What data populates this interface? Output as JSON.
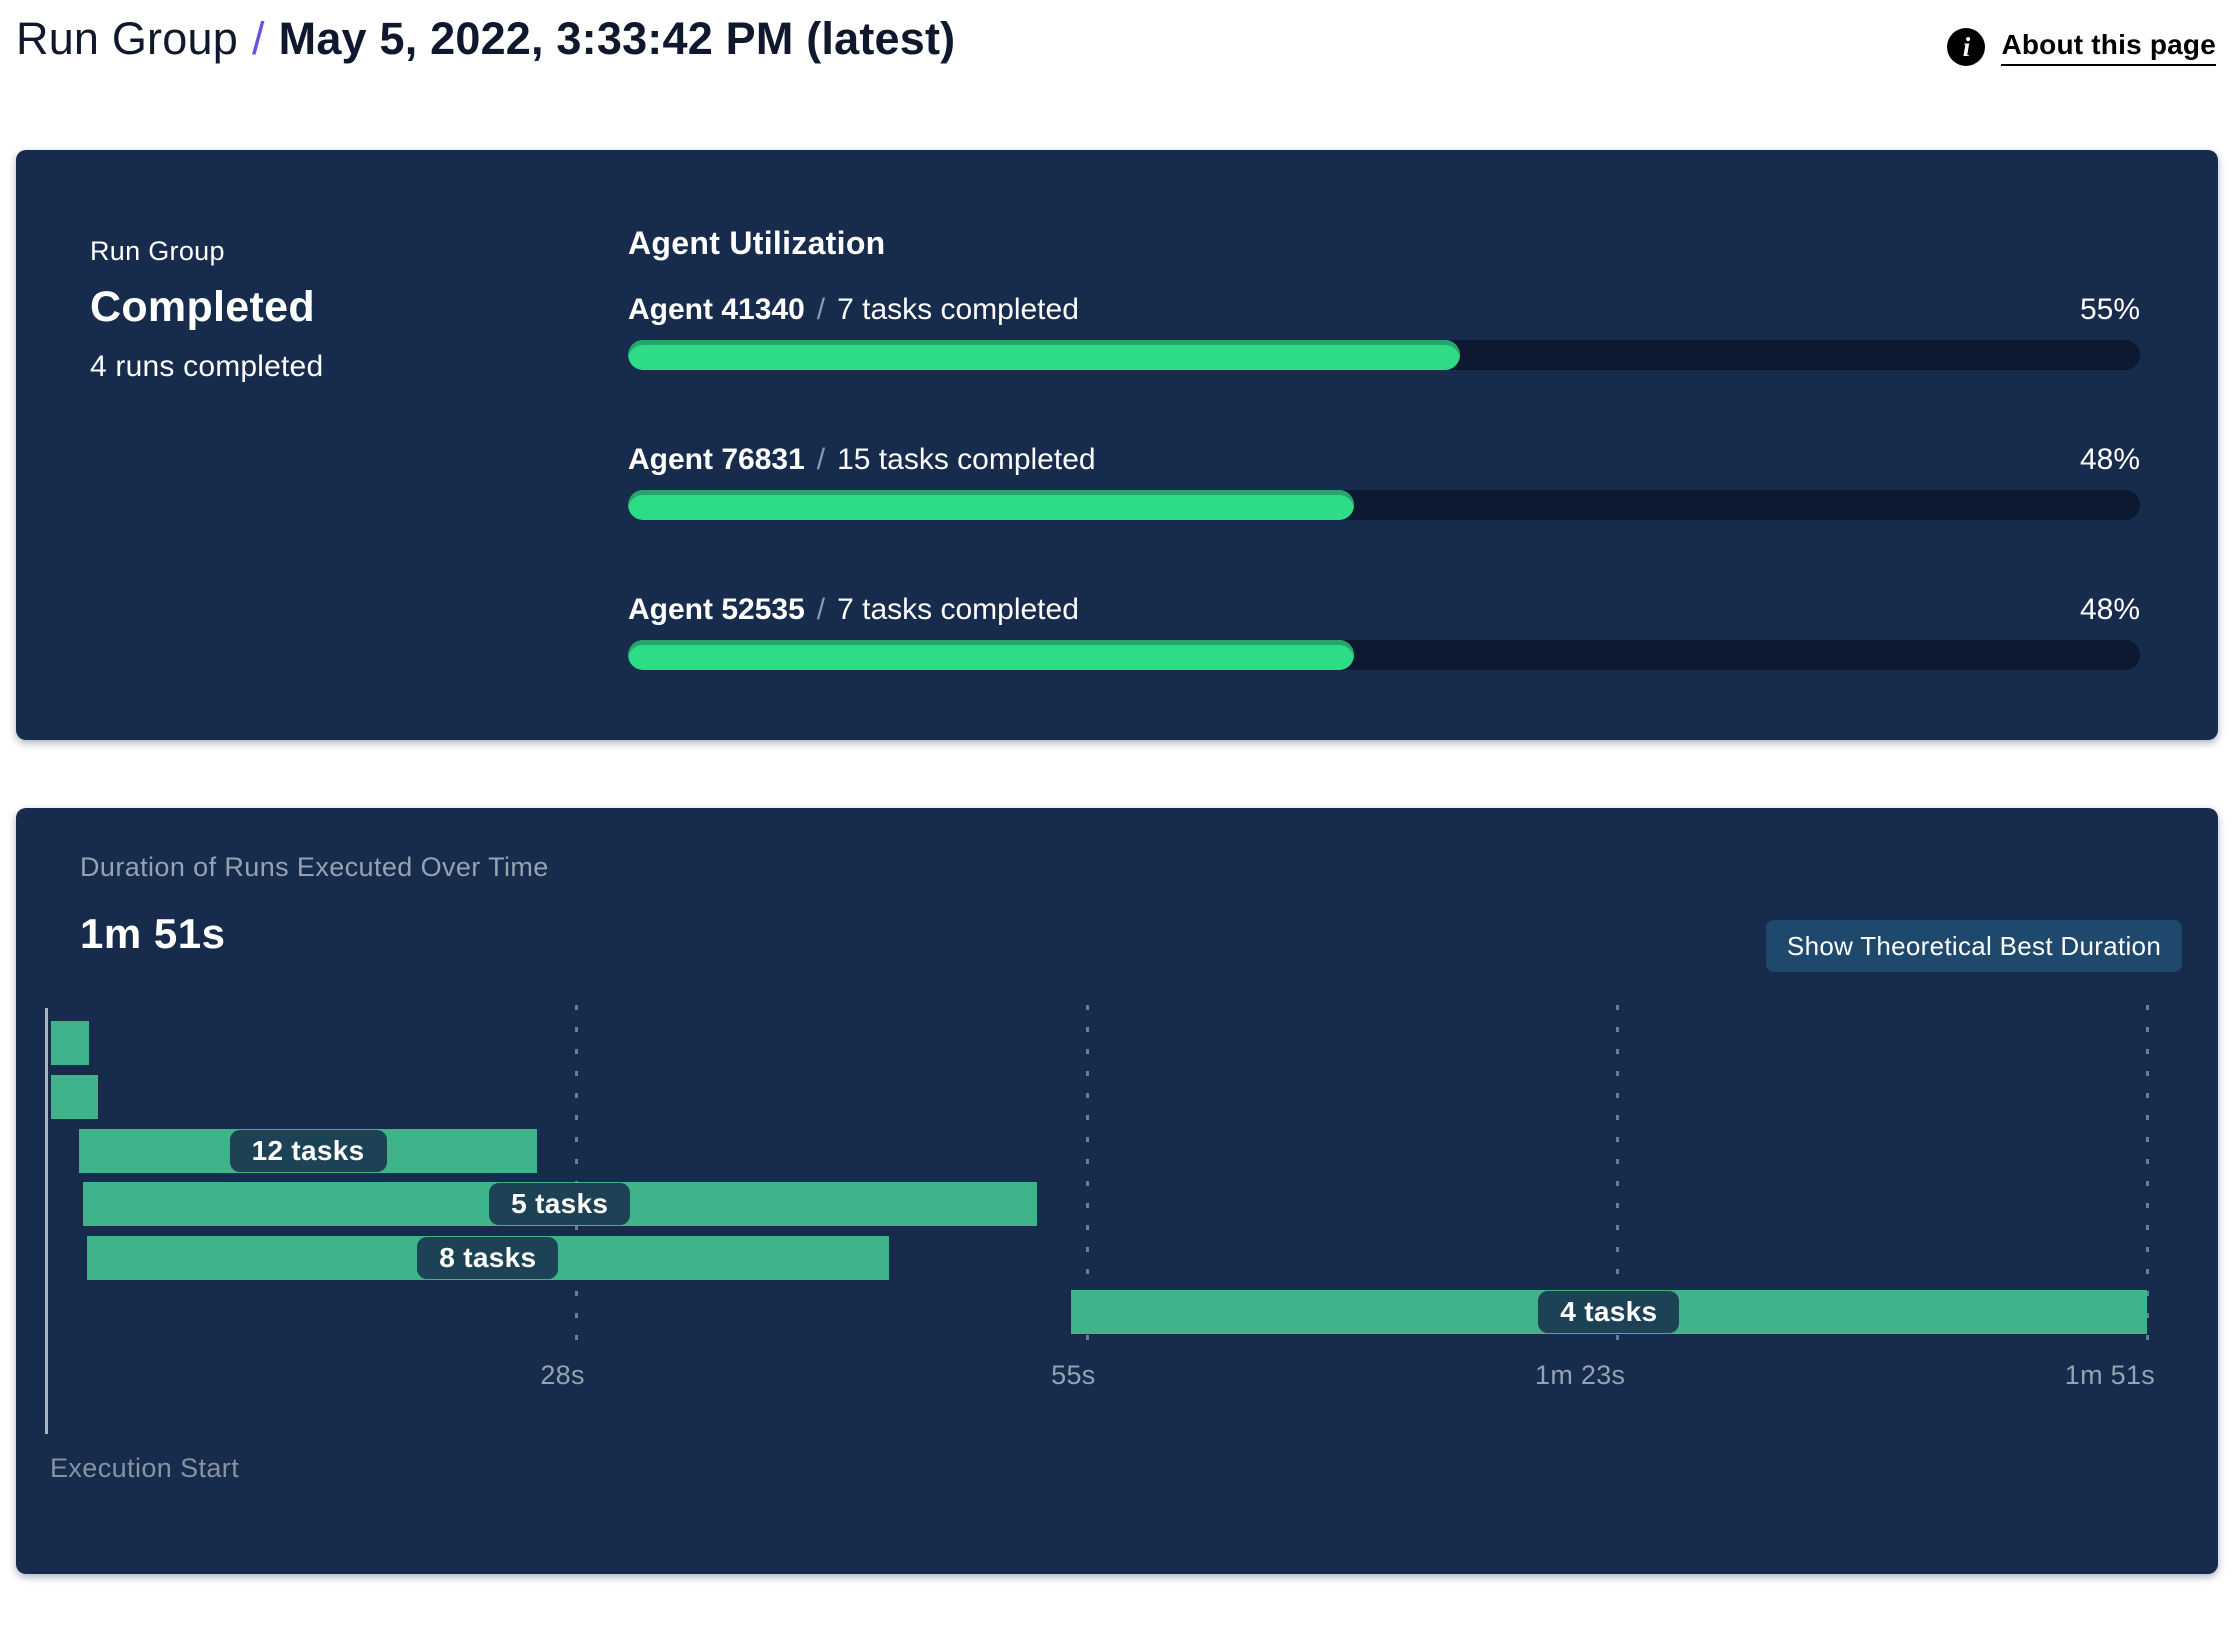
{
  "header": {
    "breadcrumb_root": "Run Group",
    "separator": "/",
    "title": "May 5, 2022, 3:33:42 PM (latest)",
    "info_icon_glyph": "i",
    "about_link": "About this page"
  },
  "status_card": {
    "label": "Run Group",
    "status": "Completed",
    "sub": "4 runs completed",
    "utilization": {
      "heading": "Agent Utilization",
      "separator": "/",
      "rows": [
        {
          "agent": "Agent 41340",
          "tasks": "7 tasks completed",
          "percent_label": "55%"
        },
        {
          "agent": "Agent 76831",
          "tasks": "15 tasks completed",
          "percent_label": "48%"
        },
        {
          "agent": "Agent 52535",
          "tasks": "7 tasks completed",
          "percent_label": "48%"
        }
      ]
    }
  },
  "duration_card": {
    "title": "Duration of Runs Executed Over Time",
    "total_duration": "1m 51s",
    "button_label": "Show Theoretical Best Duration",
    "execution_start_label": "Execution Start"
  },
  "colors": {
    "card_bg": "#172b4d",
    "accent_purple": "#6b51e0",
    "progress_green": "#2edc88",
    "progress_green_shade": "#26a66b",
    "gantt_green": "#3fb48a",
    "chip_navy": "#1d4155",
    "track_dark": "#0c1930",
    "button_blue": "#1e486c",
    "muted_text": "#96a1b2"
  },
  "chart_data": [
    {
      "type": "bar",
      "title": "Agent Utilization",
      "categories": [
        "Agent 41340",
        "Agent 76831",
        "Agent 52535"
      ],
      "values": [
        55,
        48,
        48
      ],
      "unit": "%",
      "tasks_completed": [
        7,
        15,
        7
      ],
      "value_labels": [
        "55%",
        "48%",
        "48%"
      ],
      "orientation": "horizontal",
      "xlim": [
        0,
        100
      ]
    },
    {
      "type": "bar",
      "subtype": "gantt",
      "title": "Duration of Runs Executed Over Time",
      "total_duration": "1m 51s",
      "x_axis_start_label": "Execution Start",
      "x_max_seconds": 111,
      "x_ticks": [
        {
          "label": "28s",
          "seconds": 28
        },
        {
          "label": "55s",
          "seconds": 55
        },
        {
          "label": "1m 23s",
          "seconds": 83
        },
        {
          "label": "1m 51s",
          "seconds": 111
        }
      ],
      "grid": "dashed-vertical",
      "legend": false,
      "runs": [
        {
          "start_s": 0.2,
          "end_s": 2.2,
          "label": ""
        },
        {
          "start_s": 0.2,
          "end_s": 2.7,
          "label": ""
        },
        {
          "start_s": 1.7,
          "end_s": 25.9,
          "label": "12 tasks"
        },
        {
          "start_s": 1.9,
          "end_s": 52.3,
          "label": "5 tasks"
        },
        {
          "start_s": 2.1,
          "end_s": 44.5,
          "label": "8 tasks"
        },
        {
          "start_s": 54.1,
          "end_s": 111,
          "label": "4 tasks"
        }
      ]
    }
  ]
}
